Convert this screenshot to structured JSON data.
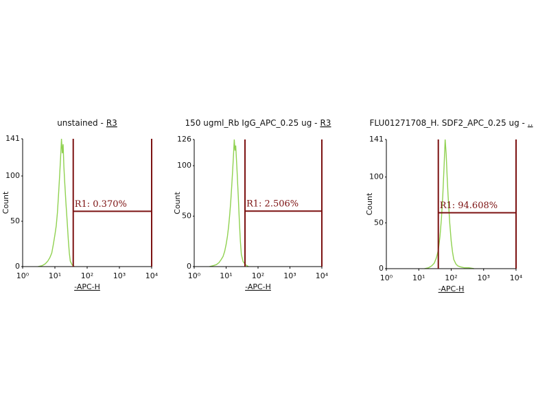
{
  "chart_data": [
    {
      "type": "line",
      "title": "unstained -",
      "title_region": "R3",
      "xlabel": "-APC-H",
      "ylabel": "Count",
      "color": "#8fd14f",
      "xscale": "log",
      "x": [
        3,
        4,
        5,
        6,
        7,
        8,
        9,
        10,
        11,
        12,
        13,
        14,
        15,
        16,
        17,
        18,
        19,
        20,
        22,
        24,
        26,
        28,
        30,
        34,
        40
      ],
      "values": [
        0,
        1,
        3,
        6,
        10,
        15,
        25,
        35,
        45,
        60,
        80,
        100,
        120,
        141,
        125,
        135,
        110,
        95,
        70,
        50,
        30,
        15,
        6,
        2,
        0
      ],
      "xlim": [
        1,
        10000
      ],
      "ylim": [
        0,
        141
      ],
      "xticks": [
        {
          "value": 1,
          "label": "10⁰"
        },
        {
          "value": 10,
          "label": "10¹"
        },
        {
          "value": 100,
          "label": "10²"
        },
        {
          "value": 1000,
          "label": "10³"
        },
        {
          "value": 10000,
          "label": "10⁴"
        }
      ],
      "yticks": [
        0,
        50,
        100,
        141
      ],
      "gate": {
        "label": "R1: 0.370%",
        "x": [
          37,
          10000
        ],
        "y": 61,
        "color": "#7b1010"
      }
    },
    {
      "type": "line",
      "title": "150 ugml_Rb IgG_APC_0.25 ug -",
      "title_region": "R3",
      "xlabel": "-APC-H",
      "ylabel": "Count",
      "color": "#8fd14f",
      "xscale": "log",
      "x": [
        3,
        4,
        5,
        6,
        7,
        8,
        9,
        10,
        11,
        12,
        13,
        14,
        15,
        16,
        17,
        18,
        19,
        20,
        22,
        24,
        26,
        28,
        30,
        34,
        40,
        50
      ],
      "values": [
        0,
        1,
        2,
        4,
        7,
        10,
        15,
        22,
        30,
        40,
        52,
        65,
        80,
        95,
        110,
        126,
        115,
        120,
        95,
        70,
        45,
        25,
        12,
        5,
        2,
        0
      ],
      "xlim": [
        1,
        10000
      ],
      "ylim": [
        0,
        126
      ],
      "xticks": [
        {
          "value": 1,
          "label": "10⁰"
        },
        {
          "value": 10,
          "label": "10¹"
        },
        {
          "value": 100,
          "label": "10²"
        },
        {
          "value": 1000,
          "label": "10³"
        },
        {
          "value": 10000,
          "label": "10⁴"
        }
      ],
      "yticks": [
        0,
        50,
        100,
        126
      ],
      "gate": {
        "label": "R1: 2.506%",
        "x": [
          39,
          10000
        ],
        "y": 55,
        "color": "#7b1010"
      }
    },
    {
      "type": "line",
      "title": "FLU01271708_H. SDF2_APC_0.25 ug -",
      "title_region": "..",
      "xlabel": "-APC-H",
      "ylabel": "Count",
      "color": "#8fd14f",
      "xscale": "log",
      "x": [
        15,
        20,
        25,
        30,
        35,
        40,
        45,
        50,
        55,
        60,
        65,
        70,
        75,
        80,
        90,
        100,
        110,
        120,
        140,
        160,
        190,
        250,
        350,
        500
      ],
      "values": [
        0,
        1,
        3,
        6,
        12,
        20,
        35,
        55,
        80,
        110,
        141,
        125,
        100,
        80,
        50,
        30,
        18,
        10,
        5,
        3,
        2,
        1,
        1,
        0
      ],
      "xlim": [
        1,
        10000
      ],
      "ylim": [
        0,
        141
      ],
      "xticks": [
        {
          "value": 1,
          "label": "10⁰"
        },
        {
          "value": 10,
          "label": "10¹"
        },
        {
          "value": 100,
          "label": "10²"
        },
        {
          "value": 1000,
          "label": "10³"
        },
        {
          "value": 10000,
          "label": "10⁴"
        }
      ],
      "yticks": [
        0,
        50,
        100,
        141
      ],
      "gate": {
        "label": "R1: 94.608%",
        "x": [
          40,
          10000
        ],
        "y": 61,
        "color": "#7b1010"
      }
    }
  ]
}
